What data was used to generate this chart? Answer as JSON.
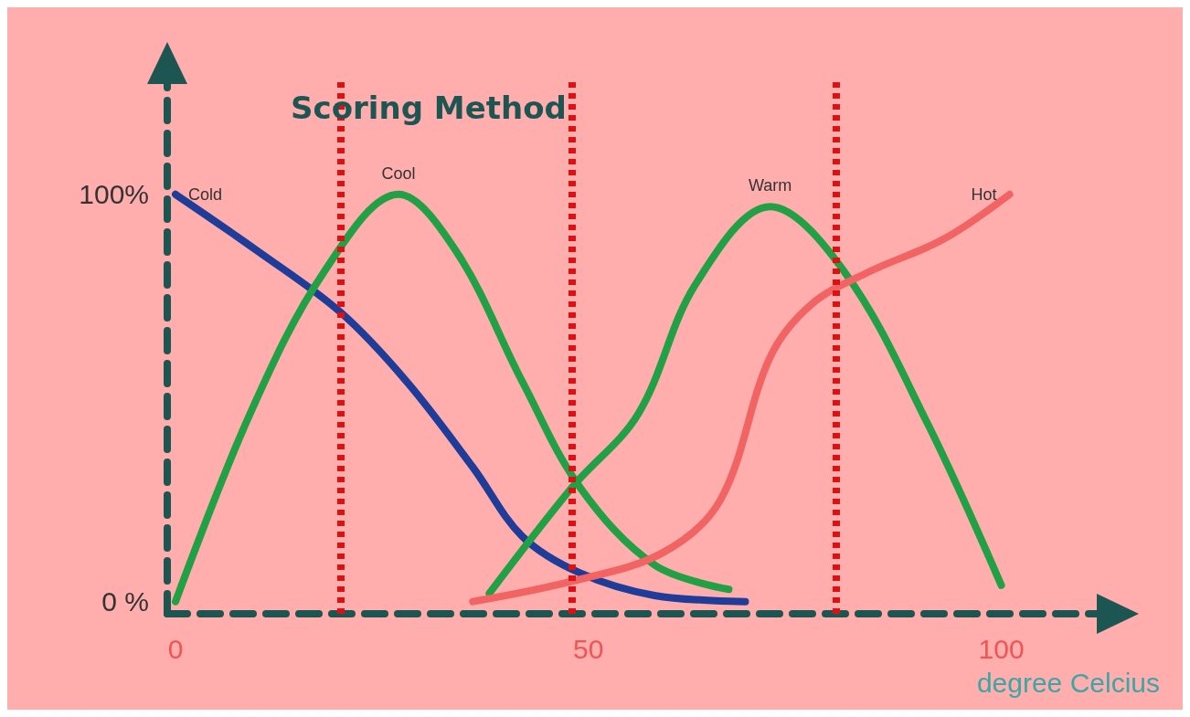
{
  "chart_data": {
    "type": "line",
    "title": "Scoring Method",
    "xlabel": "degree Celcius",
    "xlim": [
      -1,
      112
    ],
    "ylim": [
      -3,
      128
    ],
    "xticks": [
      0,
      50,
      100
    ],
    "yticks": [
      {
        "value": 0,
        "label": "0 %"
      },
      {
        "value": 100,
        "label": "100%"
      }
    ],
    "grid": false,
    "marker": "none",
    "line_style": "solid",
    "series": [
      {
        "name": "Cold",
        "color": "#1f3c98",
        "x": [
          0,
          10,
          20,
          28,
          36,
          42,
          49,
          58,
          69
        ],
        "values": [
          100,
          86,
          71,
          54,
          33,
          16,
          7,
          1.5,
          0
        ]
      },
      {
        "name": "Cool",
        "color": "#22a045",
        "x": [
          0,
          9,
          18,
          27,
          34,
          42,
          49,
          58,
          67
        ],
        "values": [
          0,
          46,
          81,
          100,
          86,
          54,
          28,
          9,
          3
        ]
      },
      {
        "name": "Warm",
        "color": "#22a045",
        "x": [
          38,
          48,
          56,
          63,
          72,
          81,
          91,
          100
        ],
        "values": [
          2,
          28,
          46,
          78,
          97,
          81,
          44,
          4
        ]
      },
      {
        "name": "Hot",
        "color": "#f26464",
        "x": [
          36,
          48,
          59,
          66,
          72,
          77,
          84,
          93,
          101
        ],
        "values": [
          0,
          5,
          12,
          25,
          60,
          73,
          81,
          89,
          100
        ]
      }
    ],
    "ref_lines": [
      {
        "axis": "x",
        "value": 20,
        "color": "#dd1111",
        "line_style": "dotted"
      },
      {
        "axis": "x",
        "value": 48,
        "color": "#dd1111",
        "line_style": "dotted"
      },
      {
        "axis": "x",
        "value": 80,
        "color": "#dd1111",
        "line_style": "dotted"
      }
    ]
  }
}
